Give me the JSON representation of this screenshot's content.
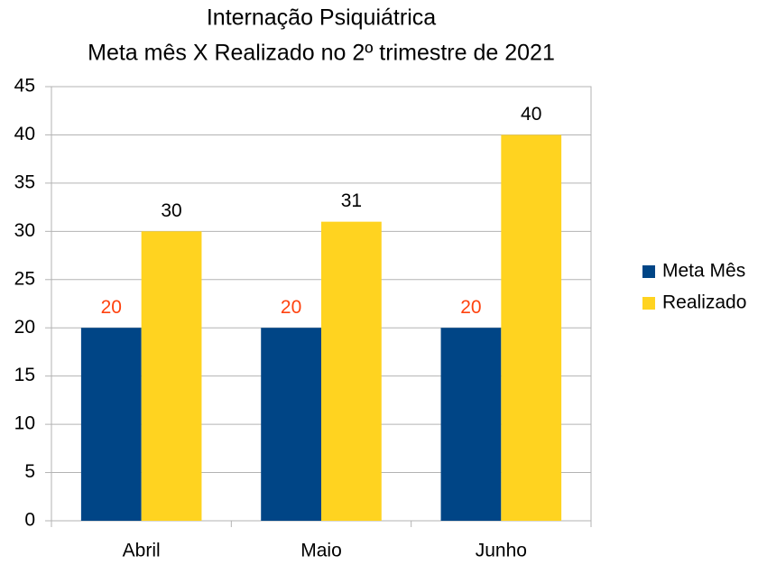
{
  "chart_data": {
    "type": "bar",
    "title": "Internação Psiquiátrica",
    "subtitle": "Meta mês X Realizado no 2º trimestre de 2021",
    "categories": [
      "Abril",
      "Maio",
      "Junho"
    ],
    "series": [
      {
        "name": "Meta Mês",
        "color": "#004586",
        "label_color": "#ff420e",
        "values": [
          20,
          20,
          20
        ]
      },
      {
        "name": "Realizado",
        "color": "#ffd320",
        "label_color": "#000000",
        "values": [
          30,
          31,
          40
        ]
      }
    ],
    "ylim": [
      0,
      45
    ],
    "yticks": [
      0,
      5,
      10,
      15,
      20,
      25,
      30,
      35,
      40,
      45
    ],
    "grid": true,
    "legend": "right"
  }
}
